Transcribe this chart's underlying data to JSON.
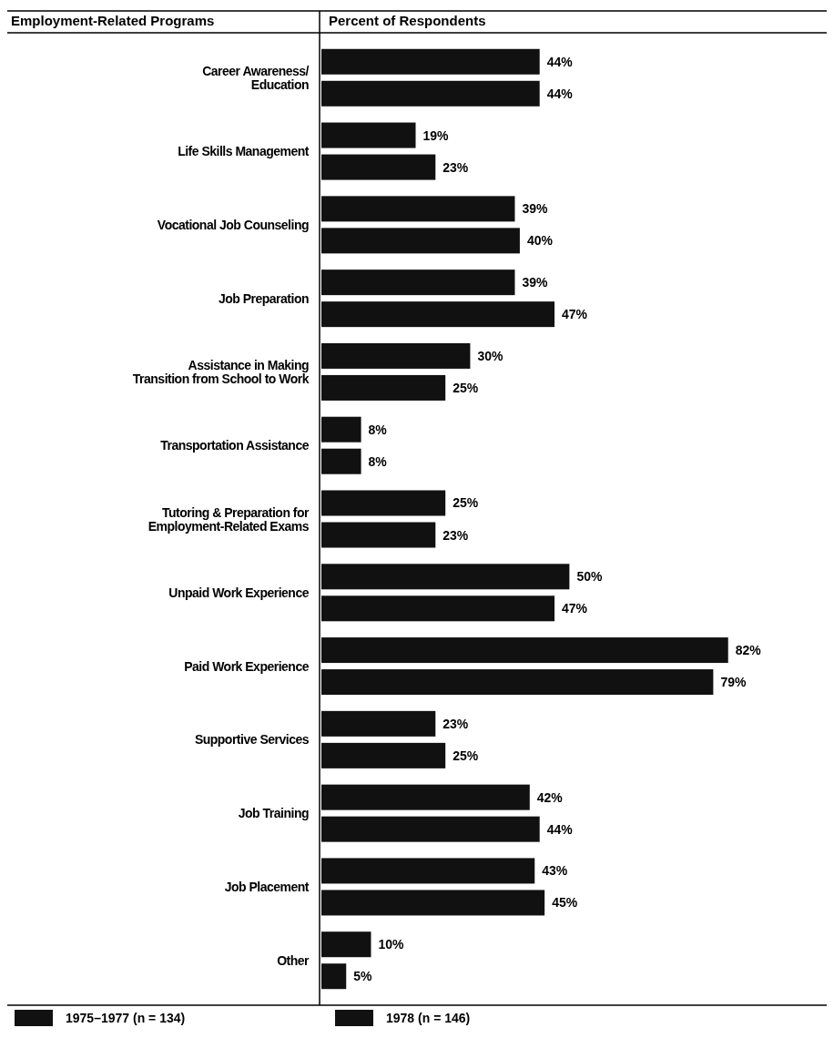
{
  "chart_data": {
    "type": "bar",
    "orientation": "horizontal",
    "ylabel": "Employment-Related Programs",
    "xlabel": "Percent of Respondents",
    "categories": [
      "Career Awareness/\nEducation",
      "Life Skills Management",
      "Vocational Job Counseling",
      "Job Preparation",
      "Assistance in Making\nTransition from School to Work",
      "Transportation Assistance",
      "Tutoring & Preparation for\nEmployment-Related Exams",
      "Unpaid Work Experience",
      "Paid Work Experience",
      "Supportive Services",
      "Job Training",
      "Job Placement",
      "Other"
    ],
    "series": [
      {
        "name": "1975–1977 (n = 134)",
        "color": "#111111",
        "values": [
          44,
          19,
          39,
          39,
          30,
          8,
          25,
          50,
          82,
          23,
          42,
          43,
          10
        ],
        "value_labels": [
          "44%",
          "19%",
          "39%",
          "39%",
          "30%",
          "8%",
          "25%",
          "50%",
          "82%",
          "23%",
          "42%",
          "43%",
          "10%"
        ]
      },
      {
        "name": "1978 (n = 146)",
        "color": "#111111",
        "values": [
          44,
          23,
          40,
          47,
          25,
          8,
          23,
          47,
          79,
          25,
          44,
          45,
          5
        ],
        "value_labels": [
          "44%",
          "23%",
          "40%",
          "47%",
          "25%",
          "8%",
          "23%",
          "47%",
          "79%",
          "25%",
          "44%",
          "45%",
          "5%"
        ]
      }
    ],
    "legend": "bottom"
  }
}
